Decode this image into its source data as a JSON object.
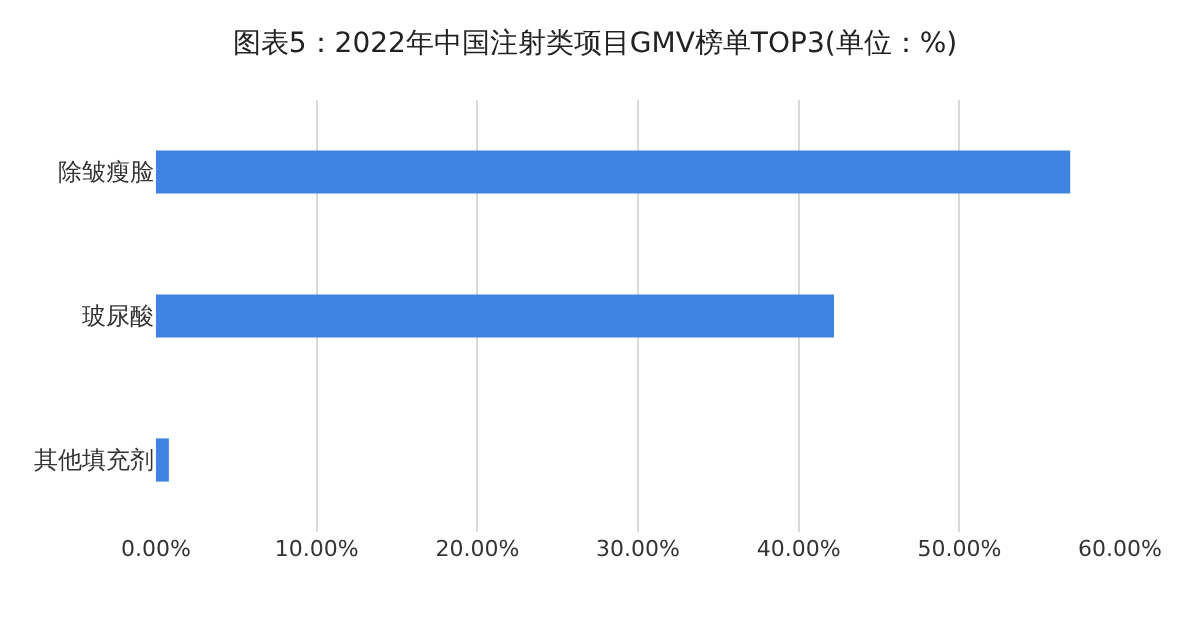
{
  "chart_data": {
    "type": "bar",
    "orientation": "horizontal",
    "title": "图表5：2022年中国注射类项目GMV榜单TOP3(单位：%)",
    "categories": [
      "除皱瘦脸",
      "玻尿酸",
      "其他填充剂"
    ],
    "values": [
      56.9,
      42.2,
      0.8
    ],
    "color": "#3f84e0",
    "xlim": [
      0,
      60
    ],
    "xticks": [
      {
        "value": 0,
        "label": "0.00%"
      },
      {
        "value": 10,
        "label": "10.00%"
      },
      {
        "value": 20,
        "label": "20.00%"
      },
      {
        "value": 30,
        "label": "30.00%"
      },
      {
        "value": 40,
        "label": "40.00%"
      },
      {
        "value": 50,
        "label": "50.00%"
      },
      {
        "value": 60,
        "label": "60.00%"
      }
    ],
    "grid": "x"
  }
}
